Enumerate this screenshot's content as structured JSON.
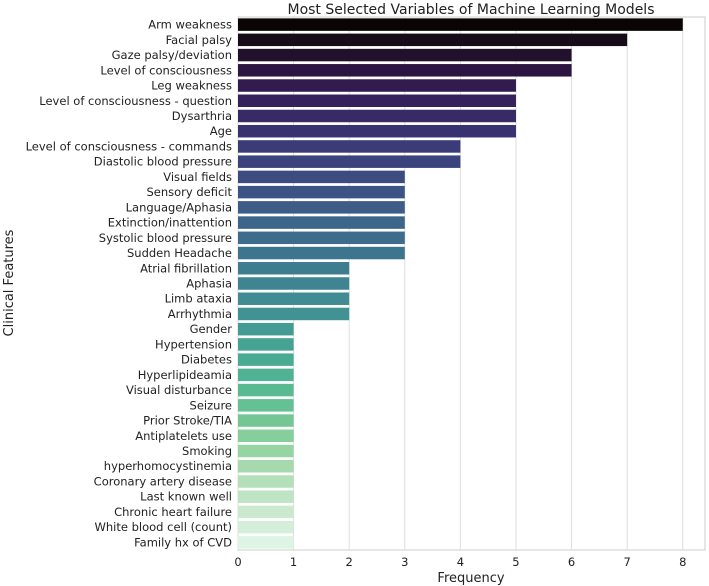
{
  "chart_data": {
    "type": "bar",
    "orientation": "horizontal",
    "title": "Most Selected Variables of Machine Learning Models",
    "xlabel": "Frequency",
    "ylabel": "Clinical Features",
    "xlim": [
      0,
      8.4
    ],
    "xticks": [
      0,
      1,
      2,
      3,
      4,
      5,
      6,
      7,
      8
    ],
    "grid": "vertical",
    "palette": "mako (dark purple to light mint)",
    "categories": [
      "Arm weakness",
      "Facial palsy",
      "Gaze palsy/deviation",
      "Level of consciousness",
      "Leg weakness",
      "Level of consciousness - question",
      "Dysarthria",
      "Age",
      "Level of consciousness - commands",
      "Diastolic blood pressure",
      "Visual fields",
      "Sensory deficit",
      "Language/Aphasia",
      "Extinction/inattention",
      "Systolic blood pressure",
      "Sudden Headache",
      "Atrial fibrillation",
      "Aphasia",
      "Limb ataxia",
      "Arrhythmia",
      "Gender",
      "Hypertension",
      "Diabetes",
      "Hyperlipideamia",
      "Visual disturbance",
      "Seizure",
      "Prior Stroke/TIA",
      "Antiplatelets use",
      "Smoking",
      "hyperhomocystinemia",
      "Coronary artery disease",
      "Last known well",
      "Chronic heart failure",
      "White blood cell (count)",
      "Family hx of CVD"
    ],
    "values": [
      8,
      7,
      6,
      6,
      5,
      5,
      5,
      5,
      4,
      4,
      3,
      3,
      3,
      3,
      3,
      3,
      2,
      2,
      2,
      2,
      1,
      1,
      1,
      1,
      1,
      1,
      1,
      1,
      1,
      1,
      1,
      1,
      1,
      1,
      1
    ],
    "colors": [
      "#0b0405",
      "#170b19",
      "#22112c",
      "#2c1540",
      "#321b4f",
      "#35225c",
      "#372a67",
      "#383270",
      "#3a3b77",
      "#3b437d",
      "#3c4c81",
      "#3c5485",
      "#3d5c88",
      "#3d648a",
      "#3d6c8c",
      "#3d748e",
      "#3e7c8f",
      "#3f8491",
      "#408c92",
      "#419393",
      "#439b93",
      "#46a393",
      "#4aab93",
      "#50b292",
      "#59ba92",
      "#64c193",
      "#74c795",
      "#86ce9c",
      "#97d4a4",
      "#a6daae",
      "#b3dfb9",
      "#bfe4c4",
      "#cae9cf",
      "#d4eed9",
      "#def5e5"
    ]
  }
}
